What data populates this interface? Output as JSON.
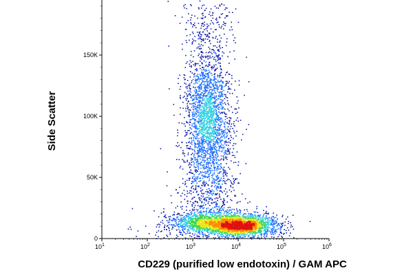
{
  "chart_data": {
    "type": "scatter",
    "style": "pseudocolor density dot plot",
    "xlabel": "CD229 (purified low endotoxin) / GAM APC",
    "ylabel": "Side Scatter",
    "x_scale": "log",
    "xlim": [
      10,
      1000000
    ],
    "ylim": [
      0,
      195000
    ],
    "x_ticks": [
      {
        "value": 10,
        "base": "10",
        "exp": "1"
      },
      {
        "value": 100,
        "base": "10",
        "exp": "2"
      },
      {
        "value": 1000,
        "base": "10",
        "exp": "3"
      },
      {
        "value": 10000,
        "base": "10",
        "exp": "4"
      },
      {
        "value": 100000,
        "base": "10",
        "exp": "5"
      },
      {
        "value": 1000000,
        "base": "10",
        "exp": "6"
      }
    ],
    "y_ticks": [
      {
        "value": 0,
        "label": "0"
      },
      {
        "value": 50000,
        "label": "50K"
      },
      {
        "value": 100000,
        "label": "100K"
      },
      {
        "value": 150000,
        "label": "150K"
      }
    ],
    "populations": [
      {
        "x": [
          2000,
          2300
        ],
        "y": [
          130000,
          75000
        ],
        "spread": [
          1.35,
          16000
        ],
        "count": 1900
      },
      {
        "x": [
          2100,
          2100
        ],
        "y": [
          195000,
          145000
        ],
        "spread": [
          1.45,
          13000
        ],
        "count": 300
      },
      {
        "x": [
          2200,
          2200
        ],
        "y": [
          70000,
          22000
        ],
        "spread": [
          1.5,
          13000
        ],
        "count": 700
      },
      {
        "x": [
          800,
          40000
        ],
        "y": [
          14000,
          11000
        ],
        "spread": [
          1.5,
          4500
        ],
        "count": 2300
      },
      {
        "x": [
          9000,
          9000
        ],
        "y": [
          10000,
          10000
        ],
        "spread": [
          1.4,
          3500
        ],
        "count": 800
      },
      {
        "x": [
          200,
          50000
        ],
        "y": [
          12000,
          8000
        ],
        "spread": [
          2.2,
          9000
        ],
        "count": 450
      }
    ],
    "density_colors": [
      "#0a1aa8",
      "#1f6fff",
      "#2ecfe0",
      "#3dd64a",
      "#e8e81a",
      "#ff8a00",
      "#e01010"
    ],
    "grid": false,
    "legend": "none"
  }
}
